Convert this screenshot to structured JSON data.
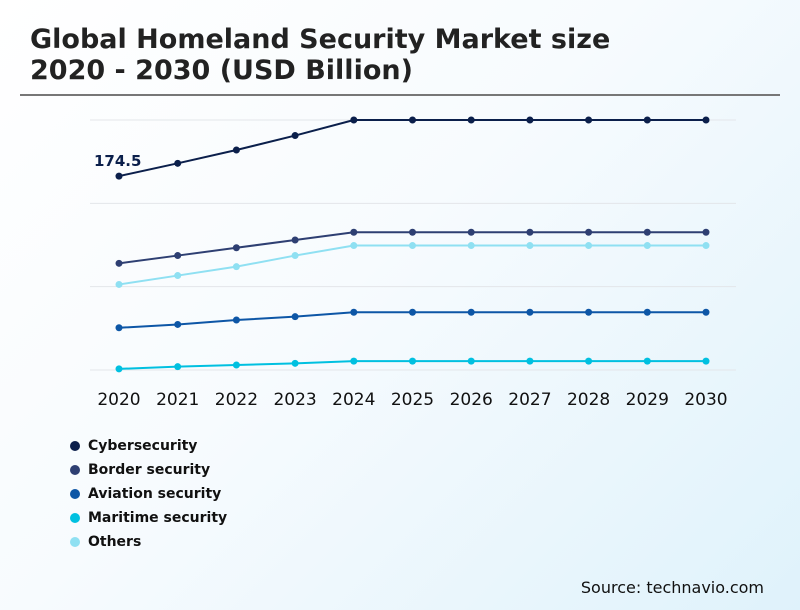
{
  "title_line1": "Global Homeland Security Market size",
  "title_line2": "2020 - 2030 (USD Billion)",
  "source": "Source: technavio.com",
  "chart_data": {
    "type": "line",
    "x": [
      "2020",
      "2021",
      "2022",
      "2023",
      "2024",
      "2025",
      "2026",
      "2027",
      "2028",
      "2029",
      "2030"
    ],
    "ylim": [
      0,
      225
    ],
    "grid": true,
    "legend_placement": "bottom-left",
    "annotations": [
      {
        "series": "Cybersecurity",
        "x": "2020",
        "text": "174.5"
      }
    ],
    "series": [
      {
        "name": "Cybersecurity",
        "color": "#0b1f4b",
        "values": [
          174.5,
          186,
          198,
          211,
          225,
          225,
          225,
          225,
          225,
          225,
          225
        ]
      },
      {
        "name": "Border security",
        "color": "#2e3f72",
        "values": [
          96,
          103,
          110,
          117,
          124,
          124,
          124,
          124,
          124,
          124,
          124
        ]
      },
      {
        "name": "Aviation security",
        "color": "#0d56a6",
        "values": [
          38,
          41,
          45,
          48,
          52,
          52,
          52,
          52,
          52,
          52,
          52
        ]
      },
      {
        "name": "Maritime security",
        "color": "#00c0e0",
        "values": [
          1,
          3,
          4.5,
          6,
          8,
          8,
          8,
          8,
          8,
          8,
          8
        ]
      },
      {
        "name": "Others",
        "color": "#8fe0f2",
        "values": [
          77,
          85,
          93,
          103,
          112,
          112,
          112,
          112,
          112,
          112,
          112
        ]
      }
    ]
  }
}
